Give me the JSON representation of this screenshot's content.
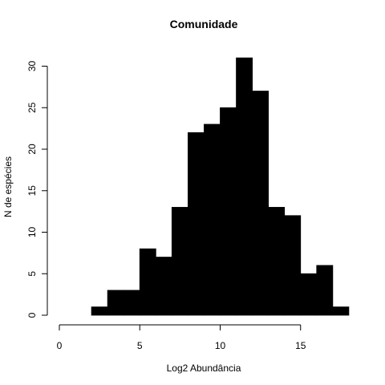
{
  "chart_data": {
    "type": "bar",
    "title": "Comunidade",
    "xlabel": "Log2 Abundância",
    "ylabel": "N de espécies",
    "x_ticks": [
      0,
      5,
      10,
      15
    ],
    "y_ticks": [
      0,
      5,
      10,
      15,
      20,
      25,
      30
    ],
    "xlim": [
      0,
      18
    ],
    "ylim": [
      0,
      31
    ],
    "bins": [
      {
        "start": 0,
        "end": 1,
        "count": 0
      },
      {
        "start": 1,
        "end": 2,
        "count": 0
      },
      {
        "start": 2,
        "end": 3,
        "count": 1
      },
      {
        "start": 3,
        "end": 4,
        "count": 3
      },
      {
        "start": 4,
        "end": 5,
        "count": 3
      },
      {
        "start": 5,
        "end": 6,
        "count": 8
      },
      {
        "start": 6,
        "end": 7,
        "count": 7
      },
      {
        "start": 7,
        "end": 8,
        "count": 13
      },
      {
        "start": 8,
        "end": 9,
        "count": 22
      },
      {
        "start": 9,
        "end": 10,
        "count": 23
      },
      {
        "start": 10,
        "end": 11,
        "count": 25
      },
      {
        "start": 11,
        "end": 12,
        "count": 31
      },
      {
        "start": 12,
        "end": 13,
        "count": 27
      },
      {
        "start": 13,
        "end": 14,
        "count": 13
      },
      {
        "start": 14,
        "end": 15,
        "count": 12
      },
      {
        "start": 15,
        "end": 16,
        "count": 5
      },
      {
        "start": 16,
        "end": 17,
        "count": 6
      },
      {
        "start": 17,
        "end": 18,
        "count": 1
      }
    ],
    "bar_color": "#000000",
    "grid": false
  }
}
